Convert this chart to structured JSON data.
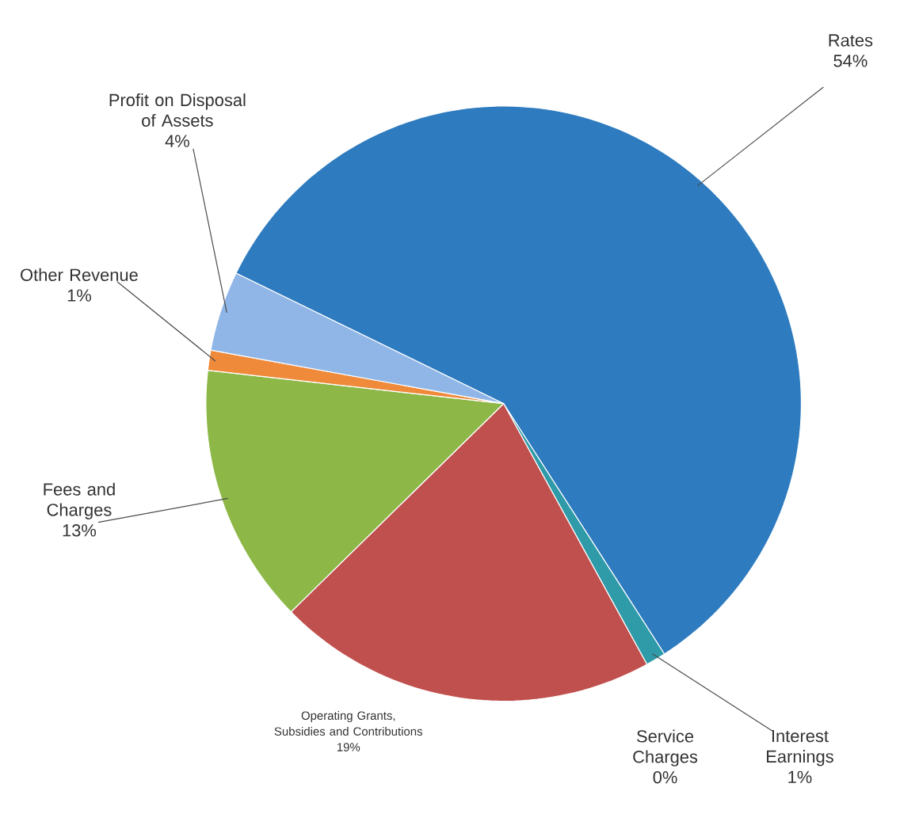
{
  "chart_data": {
    "type": "pie",
    "categories": [
      "Rates",
      "Interest Earnings",
      "Service Charges",
      "Operating Grants, Subsidies and Contributions",
      "Fees and Charges",
      "Other Revenue",
      "Profit on Disposal of Assets"
    ],
    "values": [
      54,
      1,
      0,
      19,
      13,
      1,
      4
    ],
    "value_labels": [
      "54%",
      "1%",
      "0%",
      "19%",
      "13%",
      "1%",
      "4%"
    ],
    "colors": [
      "#2e7bbf",
      "#2f9aa8",
      "#6a9fd0",
      "#c0504d",
      "#8db848",
      "#ee8a3a",
      "#8fb6e6"
    ]
  }
}
